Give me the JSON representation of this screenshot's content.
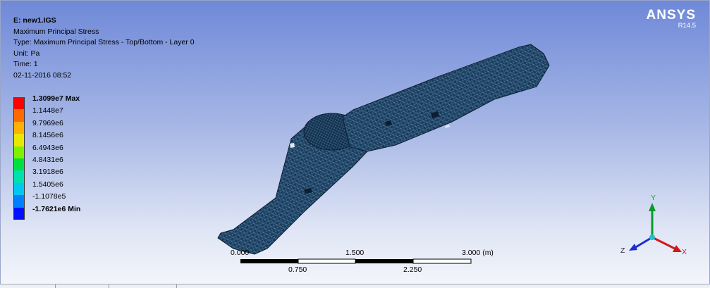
{
  "info": {
    "title": "E: new1.IGS",
    "result": "Maximum Principal Stress",
    "type": "Type: Maximum Principal Stress - Top/Bottom - Layer 0",
    "unit": "Unit: Pa",
    "time": "Time: 1",
    "datetime": "02-11-2016 08:52"
  },
  "legend": [
    {
      "label": "1.3099e7 Max",
      "color": "#ff0000",
      "bold": true
    },
    {
      "label": "1.1448e7",
      "color": "#ff6a00"
    },
    {
      "label": "9.7969e6",
      "color": "#ffb000"
    },
    {
      "label": "8.1456e6",
      "color": "#e8e800"
    },
    {
      "label": "6.4943e6",
      "color": "#7ff000"
    },
    {
      "label": "4.8431e6",
      "color": "#00e040"
    },
    {
      "label": "3.1918e6",
      "color": "#00e0b0"
    },
    {
      "label": "1.5405e6",
      "color": "#00c8f0"
    },
    {
      "label": "-1.1078e5",
      "color": "#0080ff"
    },
    {
      "label": "-1.7621e6 Min",
      "color": "#0010ff",
      "bold": true
    }
  ],
  "logo": {
    "brand": "ANSYS",
    "version": "R14.5"
  },
  "scale": {
    "top": [
      "0.000",
      "1.500",
      "3.000 (m)"
    ],
    "bottom": [
      "0.750",
      "2.250"
    ]
  },
  "triad": {
    "y": "Y",
    "z": "Z",
    "x": "X"
  },
  "colors": {
    "model": "#1e3a5a",
    "mesh": "#4a8ab0"
  }
}
